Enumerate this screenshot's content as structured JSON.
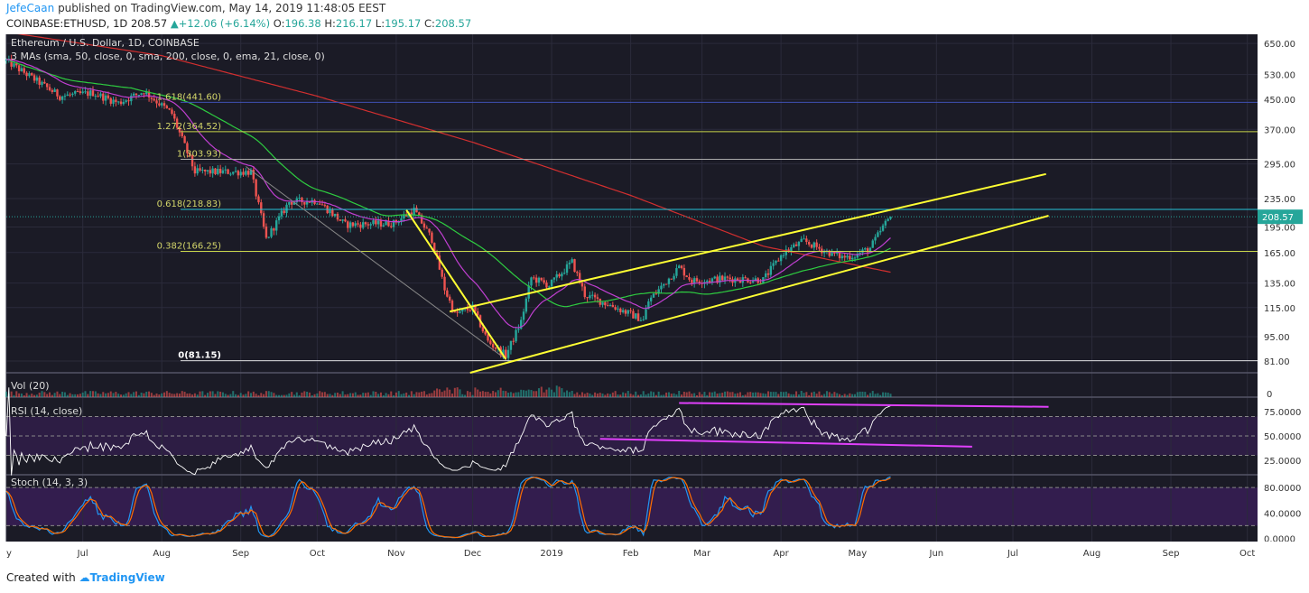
{
  "header": {
    "author": "JefeCaan",
    "published_text": "published on TradingView.com, May 14, 2019 11:48:05 EEST",
    "symbol": "COINBASE:ETHUSD, 1D",
    "last": "208.57",
    "change": "+12.06 (+6.14%)",
    "o_label": "O:",
    "o": "196.38",
    "h_label": "H:",
    "h": "216.17",
    "l_label": "L:",
    "l": "195.17",
    "c_label": "C:",
    "c": "208.57"
  },
  "footer": {
    "created_with": "Created with",
    "brand": "TradingView"
  },
  "colors": {
    "background": "#1b1b26",
    "grid": "#2b2b3b",
    "up": "#26a69a",
    "down": "#ef5350",
    "sma50": "#2ecc40",
    "sma200": "#d32f2f",
    "ema21": "#c03fd1",
    "trend": "#ffff33",
    "fib": "#c8d64a",
    "rsi_line": "#ffffff",
    "divergence": "#e040fb",
    "stoch_k": "#2196f3",
    "stoch_d": "#ff6d00",
    "pane_fill": "#3c1f5c"
  },
  "chart_data": {
    "type": "candlestick",
    "title": "Ethereum / U.S. Dollar, 1D, COINBASE",
    "indicator_label": "3 MAs (sma, 50, close, 0, sma, 200, close, 0, ema, 21, close, 0)",
    "price_scale": "log",
    "ylim": [
      75,
      690
    ],
    "price_ticks": [
      "650.00",
      "530.00",
      "450.00",
      "370.00",
      "295.00",
      "235.00",
      "195.00",
      "165.00",
      "135.00",
      "115.00",
      "95.00",
      "81.00"
    ],
    "last_price": "208.57",
    "x_range": [
      "2018-06-01",
      "2019-10-05"
    ],
    "x_ticks": [
      {
        "label": "y",
        "date": "2018-06-01"
      },
      {
        "label": "Jul",
        "date": "2018-07-01"
      },
      {
        "label": "Aug",
        "date": "2018-08-01"
      },
      {
        "label": "Sep",
        "date": "2018-09-01"
      },
      {
        "label": "Oct",
        "date": "2018-10-01"
      },
      {
        "label": "Nov",
        "date": "2018-11-01"
      },
      {
        "label": "Dec",
        "date": "2018-12-01"
      },
      {
        "label": "2019",
        "date": "2019-01-01"
      },
      {
        "label": "Feb",
        "date": "2019-02-01"
      },
      {
        "label": "Mar",
        "date": "2019-03-01"
      },
      {
        "label": "Apr",
        "date": "2019-04-01"
      },
      {
        "label": "May",
        "date": "2019-05-01"
      },
      {
        "label": "Jun",
        "date": "2019-06-01"
      },
      {
        "label": "Jul",
        "date": "2019-07-01"
      },
      {
        "label": "Aug",
        "date": "2019-08-01"
      },
      {
        "label": "Sep",
        "date": "2019-09-01"
      },
      {
        "label": "Oct",
        "date": "2019-10-01"
      }
    ],
    "close_anchors": [
      [
        "2018-06-01",
        580
      ],
      [
        "2018-06-10",
        525
      ],
      [
        "2018-06-22",
        460
      ],
      [
        "2018-07-05",
        470
      ],
      [
        "2018-07-15",
        440
      ],
      [
        "2018-07-25",
        475
      ],
      [
        "2018-08-05",
        410
      ],
      [
        "2018-08-14",
        280
      ],
      [
        "2018-08-25",
        280
      ],
      [
        "2018-09-05",
        280
      ],
      [
        "2018-09-11",
        180
      ],
      [
        "2018-09-20",
        230
      ],
      [
        "2018-10-01",
        232
      ],
      [
        "2018-10-12",
        198
      ],
      [
        "2018-10-31",
        200
      ],
      [
        "2018-11-08",
        218
      ],
      [
        "2018-11-15",
        180
      ],
      [
        "2018-11-20",
        130
      ],
      [
        "2018-11-24",
        110
      ],
      [
        "2018-12-01",
        115
      ],
      [
        "2018-12-07",
        92
      ],
      [
        "2018-12-14",
        84
      ],
      [
        "2018-12-20",
        105
      ],
      [
        "2018-12-24",
        140
      ],
      [
        "2018-12-31",
        133
      ],
      [
        "2019-01-09",
        155
      ],
      [
        "2019-01-14",
        125
      ],
      [
        "2019-01-25",
        116
      ],
      [
        "2019-02-06",
        106
      ],
      [
        "2019-02-08",
        120
      ],
      [
        "2019-02-20",
        150
      ],
      [
        "2019-02-25",
        137
      ],
      [
        "2019-03-10",
        139
      ],
      [
        "2019-03-25",
        138
      ],
      [
        "2019-04-02",
        165
      ],
      [
        "2019-04-10",
        178
      ],
      [
        "2019-04-17",
        168
      ],
      [
        "2019-04-25",
        160
      ],
      [
        "2019-04-30",
        162
      ],
      [
        "2019-05-06",
        170
      ],
      [
        "2019-05-11",
        195
      ],
      [
        "2019-05-14",
        208.57
      ]
    ],
    "sma200_anchors": [
      [
        "2018-06-01",
        700
      ],
      [
        "2018-08-01",
        600
      ],
      [
        "2018-10-01",
        460
      ],
      [
        "2018-12-01",
        340
      ],
      [
        "2019-02-01",
        240
      ],
      [
        "2019-03-25",
        172
      ],
      [
        "2019-05-14",
        145
      ]
    ],
    "fib_levels": [
      {
        "label": "1.618(441.60)",
        "value": 441.6
      },
      {
        "label": "1.272(364.52)",
        "value": 364.52
      },
      {
        "label": "1(303.93)",
        "value": 303.93
      },
      {
        "label": "0.618(218.83)",
        "value": 218.83
      },
      {
        "label": "0.382(166.25)",
        "value": 166.25
      },
      {
        "label": "0(81.15)",
        "value": 81.15
      }
    ],
    "trendlines": [
      {
        "from": [
          "2018-11-05",
          218
        ],
        "to": [
          "2018-12-14",
          82
        ]
      },
      {
        "from": [
          "2018-11-22",
          112
        ],
        "to": [
          "2019-07-14",
          276
        ]
      },
      {
        "from": [
          "2018-11-30",
          75
        ],
        "to": [
          "2019-07-15",
          210
        ]
      }
    ],
    "volume_pane": {
      "label": "Vol (20)",
      "ticks": [
        "0"
      ]
    },
    "rsi_pane": {
      "label": "RSI (14, close)",
      "ticks": [
        "75.0000",
        "50.0000",
        "25.0000"
      ],
      "ylim": [
        10,
        90
      ],
      "divergence_lines": [
        {
          "from": [
            "2019-02-20",
            84
          ],
          "to": [
            "2019-07-15",
            80
          ]
        },
        {
          "from": [
            "2019-01-20",
            47
          ],
          "to": [
            "2019-06-15",
            39
          ]
        }
      ]
    },
    "stoch_pane": {
      "label": "Stoch (14, 3, 3)",
      "ticks": [
        "80.0000",
        "40.0000",
        "0.0000"
      ],
      "ylim": [
        -5,
        100
      ]
    }
  }
}
